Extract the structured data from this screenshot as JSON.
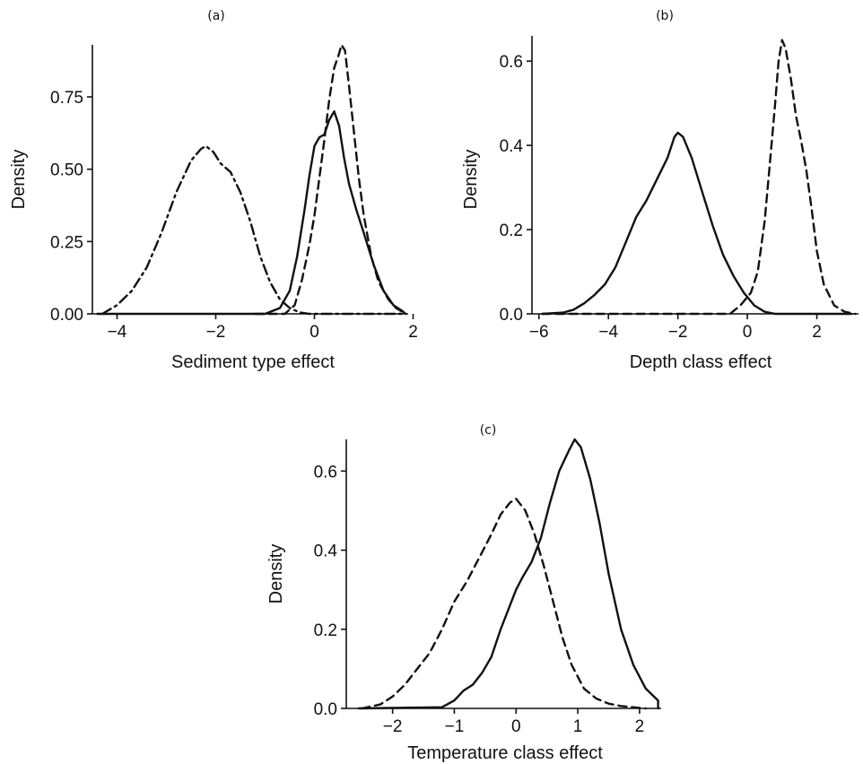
{
  "chart_data": [
    {
      "panel": "(a)",
      "type": "line",
      "title": "",
      "xlabel": "Sediment type effect",
      "ylabel": "Density",
      "xlim": [
        -4.5,
        1.9
      ],
      "ylim": [
        0,
        0.93
      ],
      "xticks": [
        -4,
        -2,
        0,
        2
      ],
      "yticks": [
        0.0,
        0.25,
        0.5,
        0.75
      ],
      "ytick_labels": [
        "0.00",
        "0.25",
        "0.50",
        "0.75"
      ],
      "grid": false,
      "series": [
        {
          "style": "solid",
          "x": [
            -4.4,
            -1.0,
            -0.7,
            -0.5,
            -0.35,
            -0.2,
            -0.1,
            0.0,
            0.1,
            0.2,
            0.3,
            0.4,
            0.5,
            0.6,
            0.7,
            0.85,
            1.0,
            1.2,
            1.4,
            1.6,
            1.78,
            1.85
          ],
          "y": [
            0.0,
            0.0,
            0.02,
            0.08,
            0.2,
            0.36,
            0.48,
            0.58,
            0.61,
            0.62,
            0.67,
            0.7,
            0.65,
            0.54,
            0.45,
            0.36,
            0.28,
            0.17,
            0.08,
            0.03,
            0.01,
            0.0
          ]
        },
        {
          "style": "dashed",
          "x": [
            -1.2,
            -0.6,
            -0.4,
            -0.25,
            -0.1,
            0.0,
            0.1,
            0.2,
            0.3,
            0.4,
            0.5,
            0.55,
            0.62,
            0.7,
            0.8,
            0.9,
            1.0,
            1.15,
            1.3,
            1.5,
            1.65,
            1.85
          ],
          "y": [
            0.0,
            0.0,
            0.03,
            0.12,
            0.24,
            0.34,
            0.47,
            0.6,
            0.74,
            0.85,
            0.9,
            0.93,
            0.91,
            0.79,
            0.63,
            0.47,
            0.34,
            0.2,
            0.11,
            0.05,
            0.02,
            0.0
          ]
        },
        {
          "style": "dash-dot",
          "x": [
            -4.3,
            -4.0,
            -3.7,
            -3.4,
            -3.1,
            -2.8,
            -2.5,
            -2.3,
            -2.2,
            -2.05,
            -1.9,
            -1.7,
            -1.5,
            -1.3,
            -1.1,
            -0.9,
            -0.7,
            -0.5,
            -0.3,
            -0.1,
            0.2,
            1.8
          ],
          "y": [
            0.0,
            0.03,
            0.08,
            0.16,
            0.28,
            0.42,
            0.53,
            0.57,
            0.58,
            0.56,
            0.52,
            0.49,
            0.42,
            0.32,
            0.2,
            0.11,
            0.05,
            0.02,
            0.005,
            0.0,
            0.0,
            0.0
          ]
        }
      ]
    },
    {
      "panel": "(b)",
      "type": "line",
      "title": "",
      "xlabel": "Depth class effect",
      "ylabel": "Density",
      "xlim": [
        -6.2,
        3.2
      ],
      "ylim": [
        0,
        0.66
      ],
      "xticks": [
        -6,
        -4,
        -2,
        0,
        2
      ],
      "yticks": [
        0.0,
        0.2,
        0.4,
        0.6
      ],
      "ytick_labels": [
        "0.0",
        "0.2",
        "0.4",
        "0.6"
      ],
      "grid": false,
      "series": [
        {
          "style": "solid",
          "x": [
            -5.9,
            -5.3,
            -5.0,
            -4.7,
            -4.4,
            -4.1,
            -3.8,
            -3.5,
            -3.2,
            -2.9,
            -2.6,
            -2.3,
            -2.1,
            -2.0,
            -1.85,
            -1.6,
            -1.3,
            -1.0,
            -0.7,
            -0.4,
            -0.1,
            0.2,
            0.5,
            0.8,
            1.2,
            3.0
          ],
          "y": [
            0.0,
            0.003,
            0.01,
            0.025,
            0.045,
            0.07,
            0.11,
            0.17,
            0.23,
            0.27,
            0.32,
            0.37,
            0.42,
            0.43,
            0.42,
            0.37,
            0.29,
            0.21,
            0.14,
            0.09,
            0.05,
            0.02,
            0.005,
            0.0,
            0.0,
            0.0
          ]
        },
        {
          "style": "dashed",
          "x": [
            -5.9,
            -0.5,
            -0.2,
            0.1,
            0.3,
            0.5,
            0.65,
            0.8,
            0.9,
            1.0,
            1.1,
            1.25,
            1.4,
            1.55,
            1.7,
            1.85,
            2.0,
            2.2,
            2.5,
            2.8,
            3.1
          ],
          "y": [
            0.0,
            0.0,
            0.02,
            0.05,
            0.1,
            0.22,
            0.36,
            0.5,
            0.6,
            0.65,
            0.63,
            0.56,
            0.47,
            0.41,
            0.34,
            0.25,
            0.15,
            0.07,
            0.02,
            0.005,
            0.0
          ]
        }
      ]
    },
    {
      "panel": "(c)",
      "type": "line",
      "title": "",
      "xlabel": "Temperature class effect",
      "ylabel": "Density",
      "xlim": [
        -2.75,
        2.35
      ],
      "ylim": [
        0,
        0.68
      ],
      "xticks": [
        -2,
        -1,
        0,
        1,
        2
      ],
      "yticks": [
        0.0,
        0.2,
        0.4,
        0.6
      ],
      "ytick_labels": [
        "0.0",
        "0.2",
        "0.4",
        "0.6"
      ],
      "grid": false,
      "series": [
        {
          "style": "solid",
          "x": [
            -2.55,
            -1.2,
            -1.0,
            -0.85,
            -0.7,
            -0.55,
            -0.4,
            -0.25,
            -0.1,
            0.0,
            0.1,
            0.25,
            0.4,
            0.55,
            0.7,
            0.85,
            0.95,
            1.05,
            1.2,
            1.35,
            1.5,
            1.7,
            1.9,
            2.1,
            2.3,
            2.3
          ],
          "y": [
            0.0,
            0.003,
            0.02,
            0.045,
            0.06,
            0.09,
            0.13,
            0.2,
            0.26,
            0.3,
            0.33,
            0.37,
            0.43,
            0.52,
            0.6,
            0.65,
            0.68,
            0.66,
            0.58,
            0.47,
            0.34,
            0.2,
            0.11,
            0.05,
            0.02,
            0.0
          ]
        },
        {
          "style": "dashed",
          "x": [
            -2.5,
            -2.2,
            -2.0,
            -1.8,
            -1.6,
            -1.4,
            -1.2,
            -1.0,
            -0.8,
            -0.6,
            -0.4,
            -0.25,
            -0.1,
            0.0,
            0.15,
            0.3,
            0.45,
            0.6,
            0.75,
            0.9,
            1.1,
            1.3,
            1.5,
            1.7,
            1.9,
            2.1
          ],
          "y": [
            0.0,
            0.01,
            0.03,
            0.06,
            0.1,
            0.14,
            0.2,
            0.27,
            0.32,
            0.38,
            0.44,
            0.49,
            0.52,
            0.53,
            0.5,
            0.44,
            0.36,
            0.27,
            0.18,
            0.11,
            0.05,
            0.025,
            0.012,
            0.006,
            0.003,
            0.0
          ]
        }
      ]
    }
  ]
}
